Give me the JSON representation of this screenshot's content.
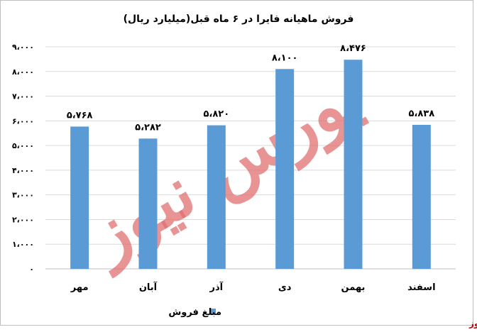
{
  "chart_data": {
    "type": "bar",
    "title": "فروش ماهیانه فایرا در ۶ ماه قبل(میلیارد ریال)",
    "categories": [
      "مهر",
      "آبان",
      "آذر",
      "دی",
      "بهمن",
      "اسفند"
    ],
    "series": [
      {
        "name": "مبلغ فروش",
        "values": [
          5768,
          5282,
          5820,
          8100,
          8476,
          5838
        ],
        "color": "#5B9BD5"
      }
    ],
    "data_labels": [
      "۵،۷۶۸",
      "۵،۲۸۲",
      "۵،۸۲۰",
      "۸،۱۰۰",
      "۸،۴۷۶",
      "۵،۸۳۸"
    ],
    "y_ticks": [
      0,
      1000,
      2000,
      3000,
      4000,
      5000,
      6000,
      7000,
      8000,
      9000
    ],
    "y_tick_labels": [
      "۰",
      "۱،۰۰۰",
      "۲،۰۰۰",
      "۳،۰۰۰",
      "۴،۰۰۰",
      "۵،۰۰۰",
      "۶،۰۰۰",
      "۷،۰۰۰",
      "۸،۰۰۰",
      "۹،۰۰۰"
    ],
    "ylim": [
      0,
      9000
    ],
    "grid": true,
    "legend_position": "bottom"
  },
  "watermark": {
    "text": "بورس نیوز",
    "color": "#E07070"
  },
  "source_label": "بورس نیوز",
  "colors": {
    "bar": "#5B9BD5",
    "grid": "#D9D9D9",
    "text": "#000000",
    "border": "#BFBFBF"
  }
}
